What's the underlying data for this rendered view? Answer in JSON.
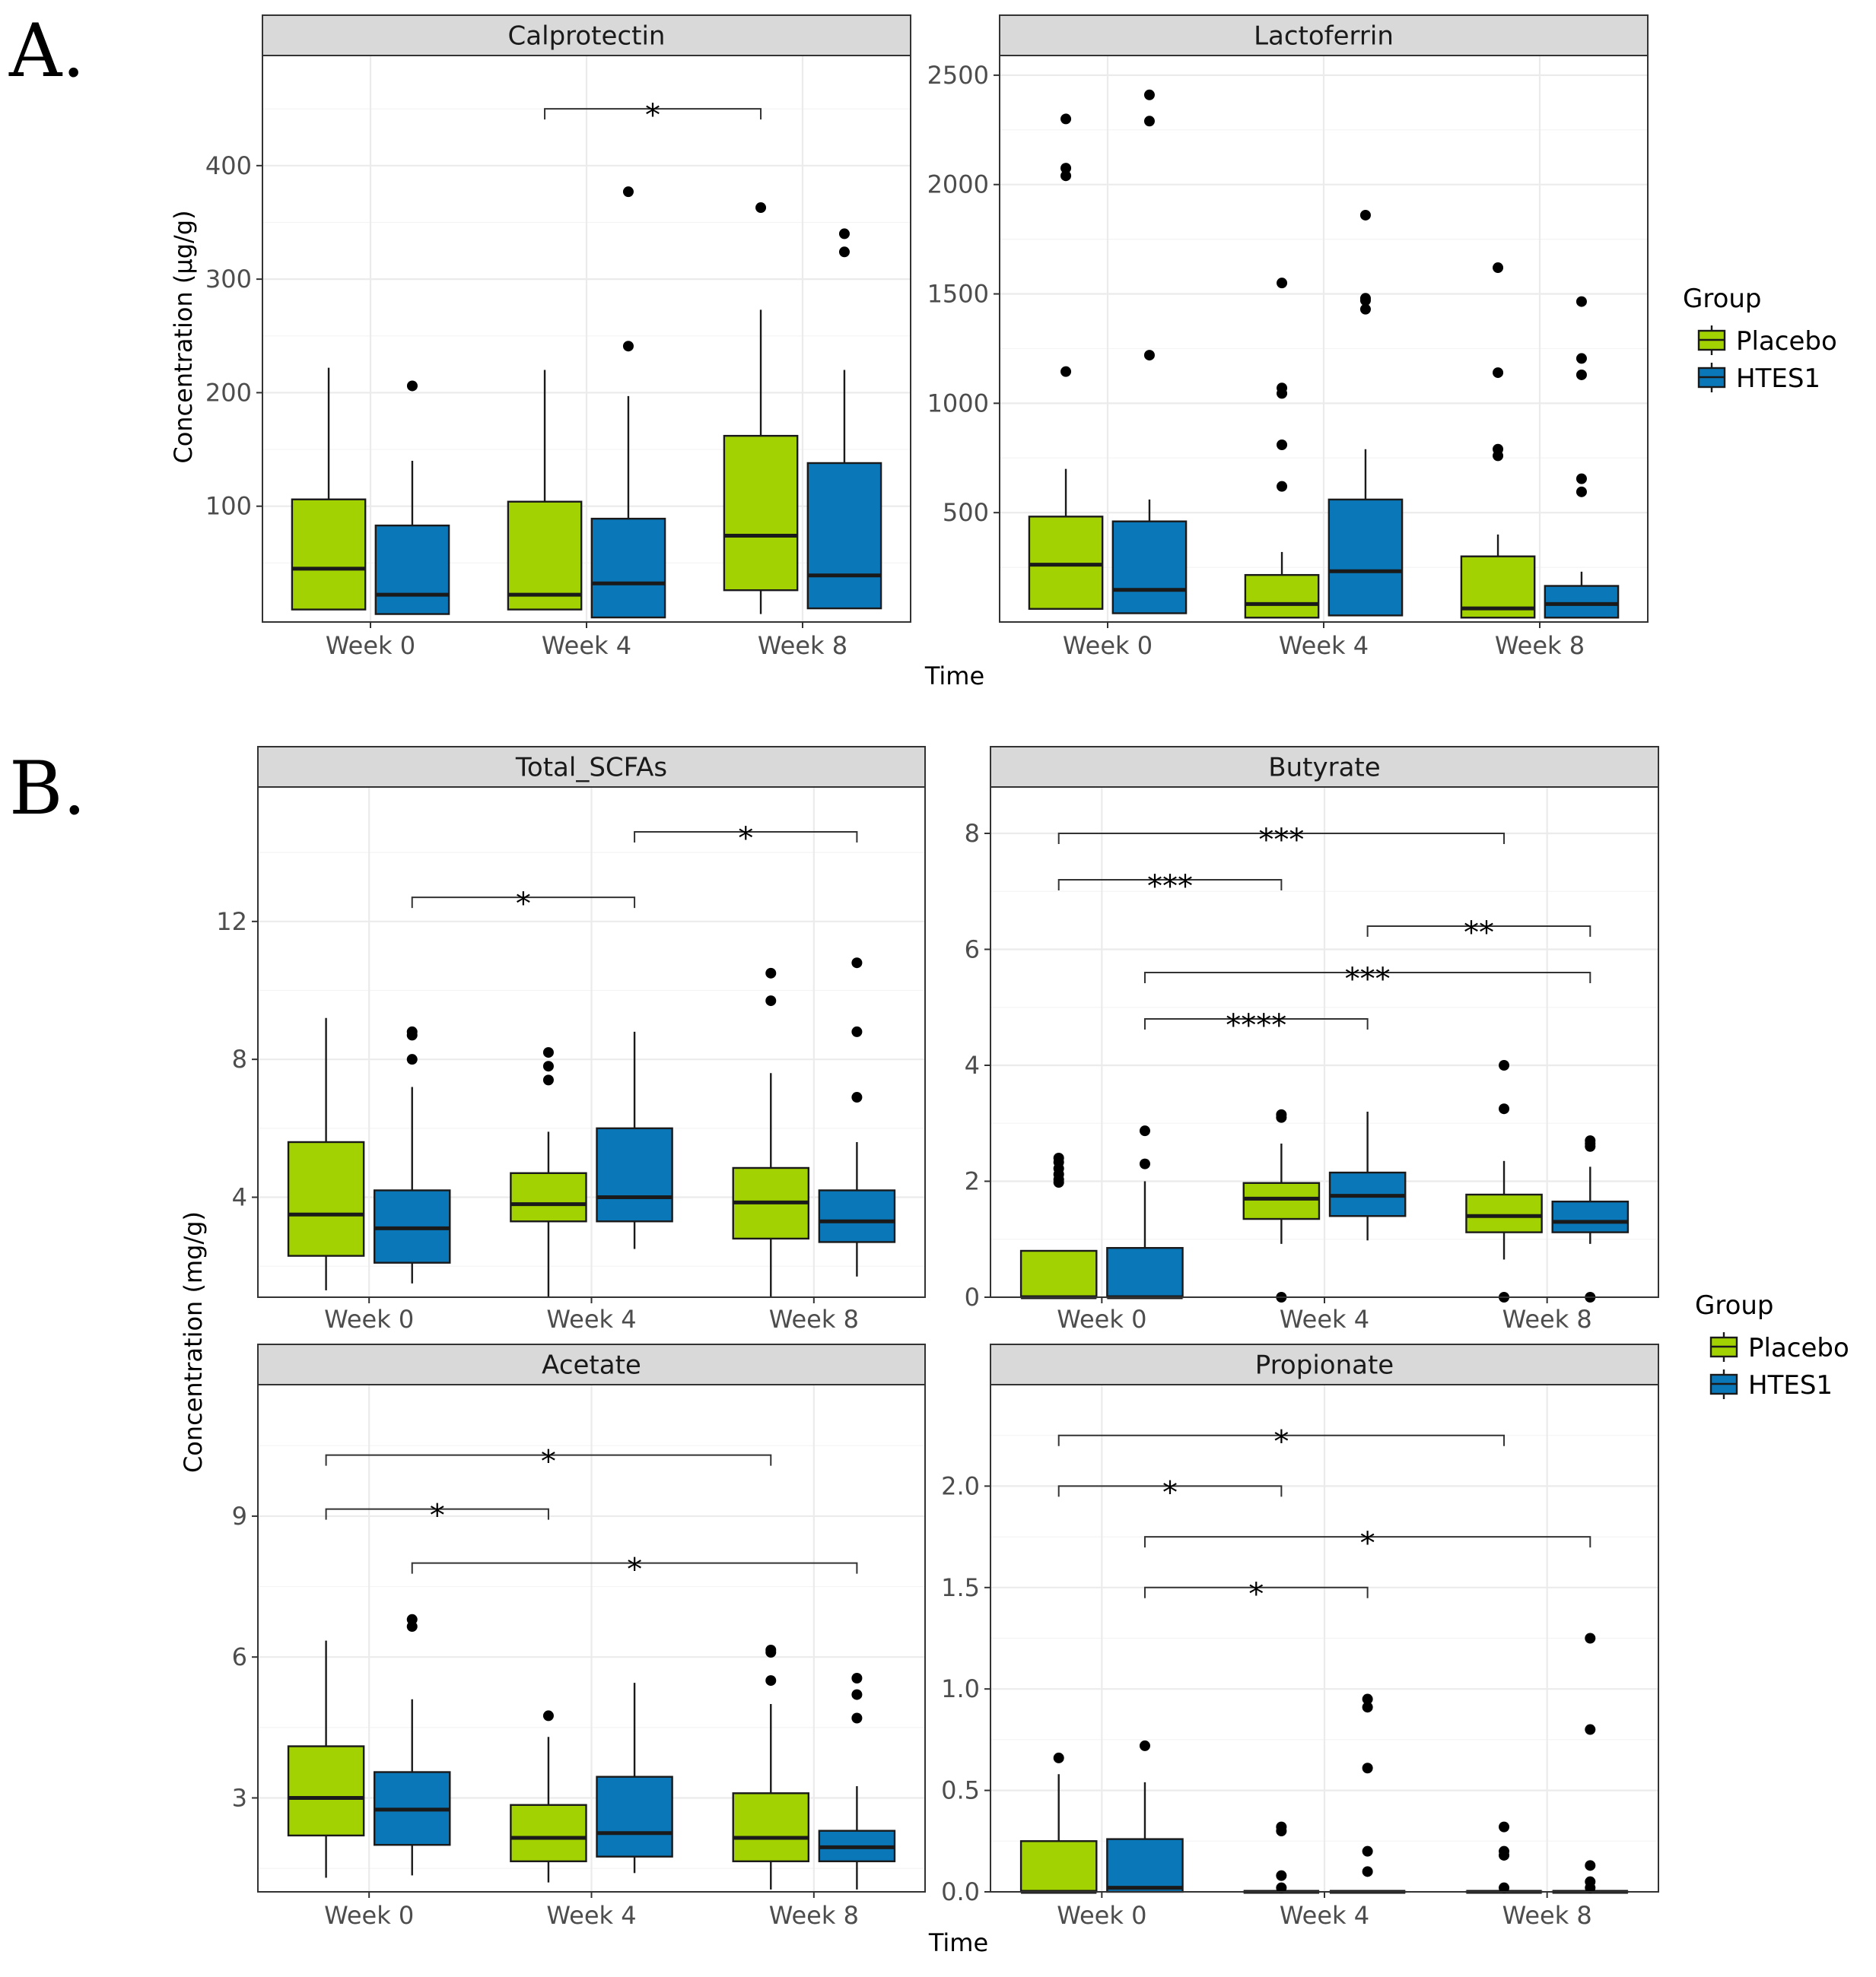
{
  "figure": {
    "panel_labels": [
      "A.",
      "B."
    ],
    "legend": {
      "title": "Group",
      "entries": [
        {
          "label": "Placebo",
          "color": "#a2d202"
        },
        {
          "label": "HTES1",
          "color": "#0a77b9"
        }
      ]
    },
    "x_axis_title": "Time",
    "y_axis_title_A": "Concentration (µg/g)",
    "y_axis_title_B": "Concentration (mg/g)"
  },
  "chart_data": [
    {
      "type": "box",
      "title": "Calprotectin",
      "categories": [
        "Week 0",
        "Week 4",
        "Week 8"
      ],
      "xlabel": "Time",
      "ylabel": "Concentration (µg/g)",
      "ylim": [
        -2,
        497
      ],
      "yticks": [
        100,
        200,
        300,
        400
      ],
      "series": [
        {
          "name": "Placebo",
          "color": "#a2d202",
          "boxes": [
            {
              "min": 9,
              "q1": 9,
              "median": 45,
              "q3": 106,
              "max": 222,
              "outliers": []
            },
            {
              "min": 9,
              "q1": 9,
              "median": 22,
              "q3": 104,
              "max": 220,
              "outliers": []
            },
            {
              "min": 5,
              "q1": 26,
              "median": 74,
              "q3": 162,
              "max": 273,
              "outliers": [
                363
              ]
            }
          ]
        },
        {
          "name": "HTES1",
          "color": "#0a77b9",
          "boxes": [
            {
              "min": 5,
              "q1": 5,
              "median": 22,
              "q3": 83,
              "max": 140,
              "outliers": [
                206
              ]
            },
            {
              "min": 2,
              "q1": 2,
              "median": 32,
              "q3": 89,
              "max": 197,
              "outliers": [
                241,
                377
              ]
            },
            {
              "min": 10,
              "q1": 10,
              "median": 39,
              "q3": 138,
              "max": 220,
              "outliers": [
                324,
                340
              ]
            }
          ]
        }
      ],
      "annotations": [
        {
          "from": "Week 4 Placebo",
          "to": "Week 8 Placebo",
          "label": "*",
          "y": 450
        }
      ]
    },
    {
      "type": "box",
      "title": "Lactoferrin",
      "categories": [
        "Week 0",
        "Week 4",
        "Week 8"
      ],
      "xlabel": "Time",
      "ylabel": "Concentration (µg/g)",
      "ylim": [
        0,
        2590
      ],
      "yticks": [
        500,
        1000,
        1500,
        2000,
        2500
      ],
      "series": [
        {
          "name": "Placebo",
          "color": "#a2d202",
          "boxes": [
            {
              "min": 60,
              "q1": 60,
              "median": 262,
              "q3": 482,
              "max": 700,
              "outliers": [
                1145,
                2040,
                2075,
                2300
              ]
            },
            {
              "min": 20,
              "q1": 20,
              "median": 82,
              "q3": 215,
              "max": 320,
              "outliers": [
                620,
                810,
                1045,
                1070,
                1550
              ]
            },
            {
              "min": 20,
              "q1": 20,
              "median": 62,
              "q3": 300,
              "max": 400,
              "outliers": [
                760,
                790,
                1140,
                1620
              ]
            }
          ]
        },
        {
          "name": "HTES1",
          "color": "#0a77b9",
          "boxes": [
            {
              "min": 40,
              "q1": 40,
              "median": 147,
              "q3": 460,
              "max": 560,
              "outliers": [
                1220,
                2290,
                2410
              ]
            },
            {
              "min": 30,
              "q1": 30,
              "median": 232,
              "q3": 560,
              "max": 790,
              "outliers": [
                1430,
                1470,
                1480,
                1860
              ]
            },
            {
              "min": 20,
              "q1": 20,
              "median": 82,
              "q3": 165,
              "max": 230,
              "outliers": [
                595,
                655,
                1130,
                1205,
                1465
              ]
            }
          ]
        }
      ],
      "annotations": []
    },
    {
      "type": "box",
      "title": "Total_SCFAs",
      "categories": [
        "Week 0",
        "Week 4",
        "Week 8"
      ],
      "xlabel": "Time",
      "ylabel": "Concentration (mg/g)",
      "ylim": [
        1.1,
        15.9
      ],
      "yticks": [
        4,
        8,
        12
      ],
      "series": [
        {
          "name": "Placebo",
          "color": "#a2d202",
          "boxes": [
            {
              "min": 1.3,
              "q1": 2.3,
              "median": 3.5,
              "q3": 5.6,
              "max": 9.2,
              "outliers": []
            },
            {
              "min": 1.1,
              "q1": 3.3,
              "median": 3.8,
              "q3": 4.7,
              "max": 5.9,
              "outliers": [
                7.4,
                7.8,
                8.2
              ]
            },
            {
              "min": 1.1,
              "q1": 2.8,
              "median": 3.85,
              "q3": 4.85,
              "max": 7.6,
              "outliers": [
                9.7,
                10.5
              ]
            }
          ]
        },
        {
          "name": "HTES1",
          "color": "#0a77b9",
          "boxes": [
            {
              "min": 1.5,
              "q1": 2.1,
              "median": 3.1,
              "q3": 4.2,
              "max": 7.2,
              "outliers": [
                8.0,
                8.7,
                8.8
              ]
            },
            {
              "min": 2.5,
              "q1": 3.3,
              "median": 4.0,
              "q3": 6.0,
              "max": 8.8,
              "outliers": []
            },
            {
              "min": 1.7,
              "q1": 2.7,
              "median": 3.3,
              "q3": 4.2,
              "max": 5.6,
              "outliers": [
                6.9,
                8.8,
                10.8
              ]
            }
          ]
        }
      ],
      "annotations": [
        {
          "from": "Week 0 HTES1",
          "to": "Week 4 HTES1",
          "label": "*",
          "y": 12.7
        },
        {
          "from": "Week 4 HTES1",
          "to": "Week 8 HTES1",
          "label": "*",
          "y": 14.6
        }
      ]
    },
    {
      "type": "box",
      "title": "Butyrate",
      "categories": [
        "Week 0",
        "Week 4",
        "Week 8"
      ],
      "xlabel": "Time",
      "ylabel": "Concentration (mg/g)",
      "ylim": [
        0,
        8.8
      ],
      "yticks": [
        0,
        2,
        4,
        6,
        8
      ],
      "series": [
        {
          "name": "Placebo",
          "color": "#a2d202",
          "boxes": [
            {
              "min": 0,
              "q1": 0,
              "median": 0,
              "q3": 0.8,
              "max": 0.8,
              "outliers": [
                1.98,
                2.03,
                2.12,
                2.22,
                2.33,
                2.4
              ]
            },
            {
              "min": 0.92,
              "q1": 1.35,
              "median": 1.7,
              "q3": 1.97,
              "max": 2.65,
              "outliers": [
                0,
                3.1,
                3.15
              ]
            },
            {
              "min": 0.65,
              "q1": 1.12,
              "median": 1.4,
              "q3": 1.77,
              "max": 2.35,
              "outliers": [
                0,
                3.25,
                4.0
              ]
            }
          ]
        },
        {
          "name": "HTES1",
          "color": "#0a77b9",
          "boxes": [
            {
              "min": 0,
              "q1": 0,
              "median": 0,
              "q3": 0.85,
              "max": 2.0,
              "outliers": [
                2.3,
                2.87
              ]
            },
            {
              "min": 0.98,
              "q1": 1.4,
              "median": 1.75,
              "q3": 2.15,
              "max": 3.2,
              "outliers": []
            },
            {
              "min": 0.92,
              "q1": 1.12,
              "median": 1.3,
              "q3": 1.65,
              "max": 2.25,
              "outliers": [
                0,
                2.6,
                2.65,
                2.7
              ]
            }
          ]
        }
      ],
      "annotations": [
        {
          "from": "Week 0 Placebo",
          "to": "Week 8 Placebo",
          "label": "***",
          "y": 8.0
        },
        {
          "from": "Week 0 Placebo",
          "to": "Week 4 Placebo",
          "label": "***",
          "y": 7.2
        },
        {
          "from": "Week 4 HTES1",
          "to": "Week 8 HTES1",
          "label": "**",
          "y": 6.4
        },
        {
          "from": "Week 0 HTES1",
          "to": "Week 8 HTES1",
          "label": "***",
          "y": 5.6
        },
        {
          "from": "Week 0 HTES1",
          "to": "Week 4 HTES1",
          "label": "****",
          "y": 4.8
        }
      ]
    },
    {
      "type": "box",
      "title": "Acetate",
      "categories": [
        "Week 0",
        "Week 4",
        "Week 8"
      ],
      "xlabel": "Time",
      "ylabel": "Concentration (mg/g)",
      "ylim": [
        1.0,
        11.8
      ],
      "yticks": [
        3,
        6,
        9
      ],
      "series": [
        {
          "name": "Placebo",
          "color": "#a2d202",
          "boxes": [
            {
              "min": 1.3,
              "q1": 2.2,
              "median": 3.0,
              "q3": 4.1,
              "max": 6.35,
              "outliers": []
            },
            {
              "min": 1.2,
              "q1": 1.65,
              "median": 2.15,
              "q3": 2.85,
              "max": 4.3,
              "outliers": [
                4.75
              ]
            },
            {
              "min": 1.05,
              "q1": 1.65,
              "median": 2.15,
              "q3": 3.1,
              "max": 5.0,
              "outliers": [
                5.5,
                6.1,
                6.15
              ]
            }
          ]
        },
        {
          "name": "HTES1",
          "color": "#0a77b9",
          "boxes": [
            {
              "min": 1.35,
              "q1": 2.0,
              "median": 2.75,
              "q3": 3.55,
              "max": 5.1,
              "outliers": [
                6.65,
                6.8
              ]
            },
            {
              "min": 1.4,
              "q1": 1.75,
              "median": 2.25,
              "q3": 3.45,
              "max": 5.45,
              "outliers": []
            },
            {
              "min": 1.05,
              "q1": 1.65,
              "median": 1.95,
              "q3": 2.3,
              "max": 3.25,
              "outliers": [
                4.7,
                5.2,
                5.55
              ]
            }
          ]
        }
      ],
      "annotations": [
        {
          "from": "Week 0 Placebo",
          "to": "Week 8 Placebo",
          "label": "*",
          "y": 10.3
        },
        {
          "from": "Week 0 Placebo",
          "to": "Week 4 Placebo",
          "label": "*",
          "y": 9.15
        },
        {
          "from": "Week 0 HTES1",
          "to": "Week 8 HTES1",
          "label": "*",
          "y": 8.0
        }
      ]
    },
    {
      "type": "box",
      "title": "Propionate",
      "categories": [
        "Week 0",
        "Week 4",
        "Week 8"
      ],
      "xlabel": "Time",
      "ylabel": "Concentration (mg/g)",
      "ylim": [
        0,
        2.5
      ],
      "yticks": [
        0.0,
        0.5,
        1.0,
        1.5,
        2.0
      ],
      "yticklabels": [
        "0.0",
        "0.5",
        "1.0",
        "1.5",
        "2.0"
      ],
      "series": [
        {
          "name": "Placebo",
          "color": "#a2d202",
          "boxes": [
            {
              "min": 0,
              "q1": 0,
              "median": 0,
              "q3": 0.25,
              "max": 0.58,
              "outliers": [
                0.66
              ]
            },
            {
              "min": 0,
              "q1": 0,
              "median": 0,
              "q3": 0,
              "max": 0,
              "outliers": [
                0.02,
                0.08,
                0.3,
                0.32
              ]
            },
            {
              "min": 0,
              "q1": 0,
              "median": 0,
              "q3": 0,
              "max": 0,
              "outliers": [
                0.02,
                0.18,
                0.2,
                0.32
              ]
            }
          ]
        },
        {
          "name": "HTES1",
          "color": "#0a77b9",
          "boxes": [
            {
              "min": 0,
              "q1": 0,
              "median": 0.02,
              "q3": 0.26,
              "max": 0.54,
              "outliers": [
                0.72
              ]
            },
            {
              "min": 0,
              "q1": 0,
              "median": 0,
              "q3": 0,
              "max": 0,
              "outliers": [
                0.1,
                0.2,
                0.61,
                0.91,
                0.95
              ]
            },
            {
              "min": 0,
              "q1": 0,
              "median": 0,
              "q3": 0,
              "max": 0,
              "outliers": [
                0.02,
                0.05,
                0.13,
                0.8,
                1.25
              ]
            }
          ]
        }
      ],
      "annotations": [
        {
          "from": "Week 0 Placebo",
          "to": "Week 8 Placebo",
          "label": "*",
          "y": 2.25
        },
        {
          "from": "Week 0 Placebo",
          "to": "Week 4 Placebo",
          "label": "*",
          "y": 2.0
        },
        {
          "from": "Week 0 HTES1",
          "to": "Week 8 HTES1",
          "label": "*",
          "y": 1.75
        },
        {
          "from": "Week 0 HTES1",
          "to": "Week 4 HTES1",
          "label": "*",
          "y": 1.5
        }
      ]
    }
  ]
}
